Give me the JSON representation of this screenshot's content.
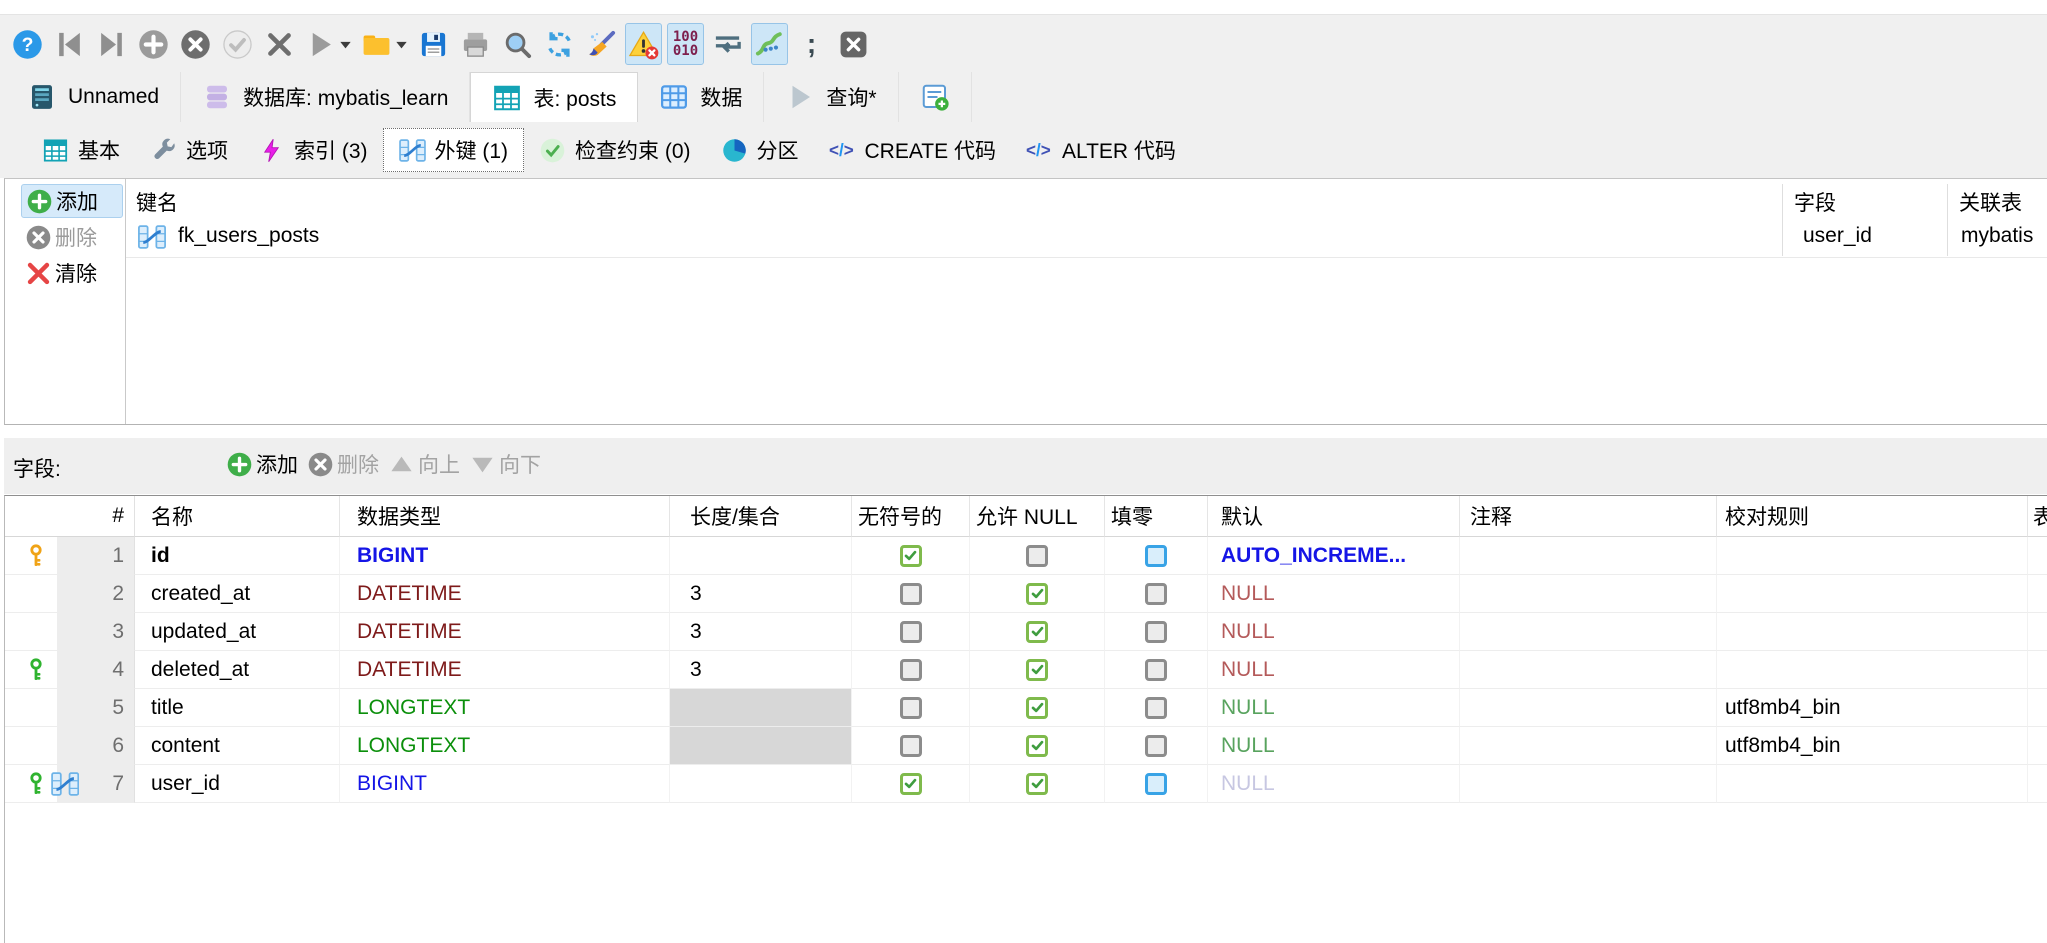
{
  "toolbar": {
    "items": [
      {
        "name": "help-button",
        "icon": "help"
      },
      {
        "name": "skip-to-first-button",
        "icon": "skip-first"
      },
      {
        "name": "skip-to-last-button",
        "icon": "skip-last"
      },
      {
        "name": "add-button",
        "icon": "plus-circle"
      },
      {
        "name": "cancel-button",
        "icon": "cancel-circle"
      },
      {
        "name": "apply-button",
        "icon": "check-circle"
      },
      {
        "name": "delete-button",
        "icon": "x-mark"
      },
      {
        "name": "run-button",
        "icon": "run",
        "caret": true
      },
      {
        "name": "open-folder-button",
        "icon": "folder",
        "caret": true
      },
      {
        "name": "save-button",
        "icon": "save"
      },
      {
        "name": "print-button",
        "icon": "print"
      },
      {
        "name": "search-button",
        "icon": "search"
      },
      {
        "name": "refresh-button",
        "icon": "refresh"
      },
      {
        "name": "cleanup-button",
        "icon": "cleanup"
      },
      {
        "name": "warnings-toggle",
        "icon": "warning",
        "highlight": true
      },
      {
        "name": "binary-view-toggle",
        "icon": "binary",
        "highlight": true,
        "lines": [
          "100",
          "010"
        ]
      },
      {
        "name": "wrap-toggle",
        "icon": "wrap"
      },
      {
        "name": "inline-params-toggle",
        "icon": "inline-params",
        "highlight": true
      },
      {
        "name": "semicolon-delimiter-button",
        "icon": "semicolon",
        "glyph": ";"
      },
      {
        "name": "close-button",
        "icon": "close"
      }
    ]
  },
  "tabs": [
    {
      "name": "tab-unnamed",
      "label": "Unnamed",
      "icon": "server",
      "active": false
    },
    {
      "name": "tab-database",
      "label": "数据库: mybatis_learn",
      "icon": "database",
      "active": false
    },
    {
      "name": "tab-table-posts",
      "label": "表: posts",
      "icon": "table-teal",
      "active": true
    },
    {
      "name": "tab-data",
      "label": "数据",
      "icon": "table-blue",
      "active": false
    },
    {
      "name": "tab-query",
      "label": "查询*",
      "icon": "play-dim",
      "active": false
    },
    {
      "name": "tab-new-query",
      "label": "",
      "icon": "new-query",
      "active": false
    }
  ],
  "subtabs": [
    {
      "name": "subtab-basic",
      "label": "基本",
      "icon": "table-teal",
      "active": false
    },
    {
      "name": "subtab-options",
      "label": "选项",
      "icon": "wrench",
      "active": false
    },
    {
      "name": "subtab-indexes",
      "label": "索引 (3)",
      "icon": "lightning",
      "active": false
    },
    {
      "name": "subtab-foreign-keys",
      "label": "外键 (1)",
      "icon": "foreign-key",
      "active": true
    },
    {
      "name": "subtab-check-constraints",
      "label": "检查约束 (0)",
      "icon": "check-pale",
      "active": false
    },
    {
      "name": "subtab-partitions",
      "label": "分区",
      "icon": "pie",
      "active": false
    },
    {
      "name": "subtab-create-code",
      "label": "CREATE 代码",
      "icon": "code",
      "active": false
    },
    {
      "name": "subtab-alter-code",
      "label": "ALTER 代码",
      "icon": "code",
      "active": false
    }
  ],
  "fk_panel": {
    "buttons": [
      {
        "name": "fk-add-button",
        "label": "添加",
        "icon": "plus-green",
        "enabled": true,
        "highlight": true
      },
      {
        "name": "fk-delete-button",
        "label": "删除",
        "icon": "x-gray-circle",
        "enabled": false,
        "highlight": false
      },
      {
        "name": "fk-clear-button",
        "label": "清除",
        "icon": "x-red",
        "enabled": true,
        "highlight": false
      }
    ],
    "columns": [
      "键名",
      "字段",
      "关联表"
    ],
    "rows": [
      {
        "name": "fk_users_posts",
        "field": "user_id",
        "ref_table": "mybatis"
      }
    ]
  },
  "fields_toolbar": {
    "label": "字段:",
    "buttons": [
      {
        "name": "fields-add-button",
        "label": "添加",
        "icon": "plus-green",
        "enabled": true
      },
      {
        "name": "fields-delete-button",
        "label": "删除",
        "icon": "x-gray-circle",
        "enabled": false
      },
      {
        "name": "fields-move-up-button",
        "label": "向上",
        "icon": "triangle-up",
        "enabled": false
      },
      {
        "name": "fields-move-down-button",
        "label": "向下",
        "icon": "triangle-down",
        "enabled": false
      }
    ]
  },
  "fields_table": {
    "headers": [
      "#",
      "名称",
      "数据类型",
      "长度/集合",
      "无符号的",
      "允许 NULL",
      "填零",
      "默认",
      "注释",
      "校对规则",
      "表"
    ],
    "rows": [
      {
        "num": "1",
        "icons": [
          "key-orange"
        ],
        "name": "id",
        "name_bold": true,
        "type": "BIGINT",
        "type_class": "t-blue",
        "type_bold": true,
        "length": "",
        "length_disabled": false,
        "unsigned": "on",
        "allow_null": "off",
        "zerofill": "off-blue",
        "default": "AUTO_INCREME...",
        "default_class": "d-auto",
        "comment": "",
        "collation": ""
      },
      {
        "num": "2",
        "icons": [],
        "name": "created_at",
        "name_bold": false,
        "type": "DATETIME",
        "type_class": "t-maroon",
        "type_bold": false,
        "length": "3",
        "length_disabled": false,
        "unsigned": "off",
        "allow_null": "on",
        "zerofill": "off",
        "default": "NULL",
        "default_class": "d-red",
        "comment": "",
        "collation": ""
      },
      {
        "num": "3",
        "icons": [],
        "name": "updated_at",
        "name_bold": false,
        "type": "DATETIME",
        "type_class": "t-maroon",
        "type_bold": false,
        "length": "3",
        "length_disabled": false,
        "unsigned": "off",
        "allow_null": "on",
        "zerofill": "off",
        "default": "NULL",
        "default_class": "d-red",
        "comment": "",
        "collation": ""
      },
      {
        "num": "4",
        "icons": [
          "key-green"
        ],
        "name": "deleted_at",
        "name_bold": false,
        "type": "DATETIME",
        "type_class": "t-maroon",
        "type_bold": false,
        "length": "3",
        "length_disabled": false,
        "unsigned": "off",
        "allow_null": "on",
        "zerofill": "off",
        "default": "NULL",
        "default_class": "d-red",
        "comment": "",
        "collation": ""
      },
      {
        "num": "5",
        "icons": [],
        "name": "title",
        "name_bold": false,
        "type": "LONGTEXT",
        "type_class": "t-green",
        "type_bold": false,
        "length": "",
        "length_disabled": true,
        "unsigned": "off",
        "allow_null": "on",
        "zerofill": "off",
        "default": "NULL",
        "default_class": "d-green",
        "comment": "",
        "collation": "utf8mb4_bin"
      },
      {
        "num": "6",
        "icons": [],
        "name": "content",
        "name_bold": false,
        "type": "LONGTEXT",
        "type_class": "t-green",
        "type_bold": false,
        "length": "",
        "length_disabled": true,
        "unsigned": "off",
        "allow_null": "on",
        "zerofill": "off",
        "default": "NULL",
        "default_class": "d-green",
        "comment": "",
        "collation": "utf8mb4_bin"
      },
      {
        "num": "7",
        "icons": [
          "key-green",
          "foreign-key"
        ],
        "name": "user_id",
        "name_bold": false,
        "type": "BIGINT",
        "type_class": "t-blue",
        "type_bold": false,
        "length": "",
        "length_disabled": false,
        "unsigned": "on",
        "allow_null": "on",
        "zerofill": "off-blue",
        "default": "NULL",
        "default_class": "d-gray",
        "comment": "",
        "collation": ""
      }
    ]
  },
  "colors": {
    "type_blue": "#1515e6",
    "type_maroon": "#7e1a1a",
    "type_green": "#0b8f0b",
    "null_red": "#b45a5a",
    "null_green": "#58a35e",
    "null_gray": "#c7c7e2",
    "highlight_bg": "#cde6f7",
    "checkbox_green": "#7fba4c",
    "checkbox_blue": "#38a3e6"
  }
}
